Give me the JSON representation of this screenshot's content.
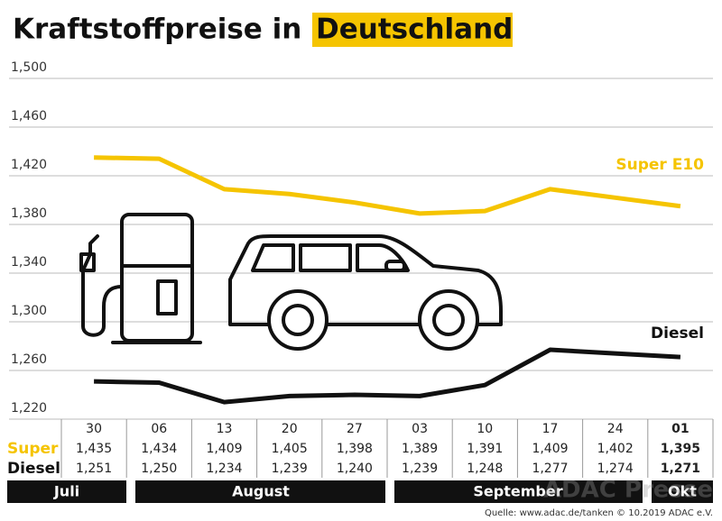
{
  "chart_data": {
    "type": "line",
    "title_parts": [
      "Kraftstoffpreise in",
      "Deutschland"
    ],
    "categories": [
      "30",
      "06",
      "13",
      "20",
      "27",
      "03",
      "10",
      "17",
      "24",
      "01"
    ],
    "series": [
      {
        "name": "Super E10",
        "row_label": "Super",
        "color": "#f5c400",
        "values": [
          1.435,
          1.434,
          1.409,
          1.405,
          1.398,
          1.389,
          1.391,
          1.409,
          1.402,
          1.395
        ],
        "value_labels": [
          "1,435",
          "1,434",
          "1,409",
          "1,405",
          "1,398",
          "1,389",
          "1,391",
          "1,409",
          "1,402",
          "1,395"
        ]
      },
      {
        "name": "Diesel",
        "row_label": "Diesel",
        "color": "#111111",
        "values": [
          1.251,
          1.25,
          1.234,
          1.239,
          1.24,
          1.239,
          1.248,
          1.277,
          1.274,
          1.271
        ],
        "value_labels": [
          "1,251",
          "1,250",
          "1,234",
          "1,239",
          "1,240",
          "1,239",
          "1,248",
          "1,277",
          "1,274",
          "1,271"
        ]
      }
    ],
    "months": [
      "Juli",
      "August",
      "September",
      "Okt"
    ],
    "ylim": [
      1.22,
      1.5
    ],
    "yticks": [
      {
        "value": 1.5,
        "label": "1,500"
      },
      {
        "value": 1.46,
        "label": "1,460"
      },
      {
        "value": 1.42,
        "label": "1,420"
      },
      {
        "value": 1.38,
        "label": "1,380"
      },
      {
        "value": 1.34,
        "label": "1,340"
      },
      {
        "value": 1.3,
        "label": "1,300"
      },
      {
        "value": 1.26,
        "label": "1,260"
      },
      {
        "value": 1.22,
        "label": "1,220"
      }
    ],
    "grid": true,
    "source": "Quelle: www.adac.de/tanken  © 10.2019  ADAC e.V.",
    "watermark": "ADAC Presse"
  }
}
